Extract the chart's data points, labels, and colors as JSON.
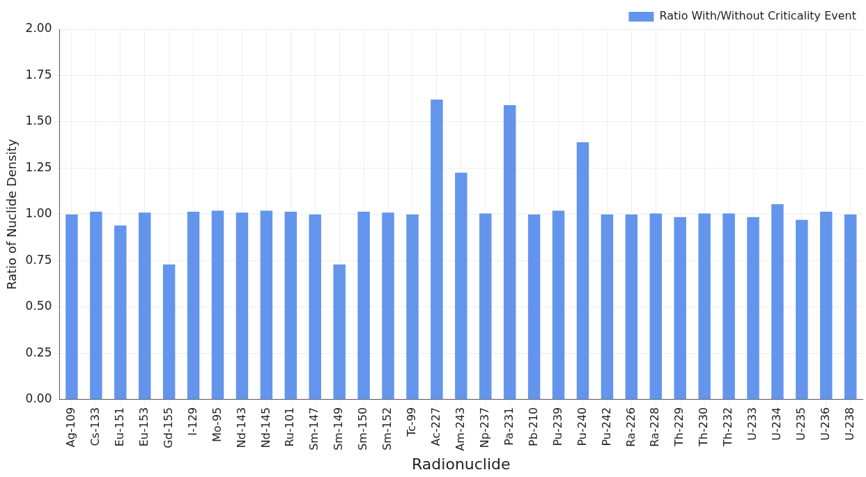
{
  "chart_data": {
    "type": "bar",
    "xlabel": "Radionuclide",
    "ylabel": "Ratio of Nuclide Density",
    "categories": [
      "Ag-109",
      "Cs-133",
      "Eu-151",
      "Eu-153",
      "Gd-155",
      "I-129",
      "Mo-95",
      "Nd-143",
      "Nd-145",
      "Ru-101",
      "Sm-147",
      "Sm-149",
      "Sm-150",
      "Sm-152",
      "Tc-99",
      "Ac-227",
      "Am-243",
      "Np-237",
      "Pa-231",
      "Pb-210",
      "Pu-239",
      "Pu-240",
      "Pu-242",
      "Ra-226",
      "Ra-228",
      "Th-229",
      "Th-230",
      "Th-232",
      "U-233",
      "U-234",
      "U-235",
      "U-236",
      "U-238"
    ],
    "series": [
      {
        "name": "Ratio With/Without Criticality Event",
        "color": "#6495ed",
        "values": [
          1.0,
          1.015,
          0.94,
          1.01,
          0.73,
          1.015,
          1.02,
          1.01,
          1.02,
          1.015,
          1.0,
          0.73,
          1.015,
          1.01,
          1.0,
          1.62,
          1.225,
          1.005,
          1.59,
          1.0,
          1.02,
          1.39,
          1.0,
          1.0,
          1.005,
          0.985,
          1.005,
          1.005,
          0.985,
          1.055,
          0.97,
          1.015,
          1.0
        ]
      }
    ],
    "ylim": [
      0,
      2
    ],
    "yticks": [
      {
        "value": 0,
        "label": "0.00"
      },
      {
        "value": 0.25,
        "label": "0.25"
      },
      {
        "value": 0.5,
        "label": "0.50"
      },
      {
        "value": 0.75,
        "label": "0.75"
      },
      {
        "value": 1,
        "label": "1.00"
      },
      {
        "value": 1.25,
        "label": "1.25"
      },
      {
        "value": 1.5,
        "label": "1.50"
      },
      {
        "value": 1.75,
        "label": "1.75"
      },
      {
        "value": 2,
        "label": "2.00"
      }
    ],
    "grid": true,
    "legend": "top right"
  }
}
